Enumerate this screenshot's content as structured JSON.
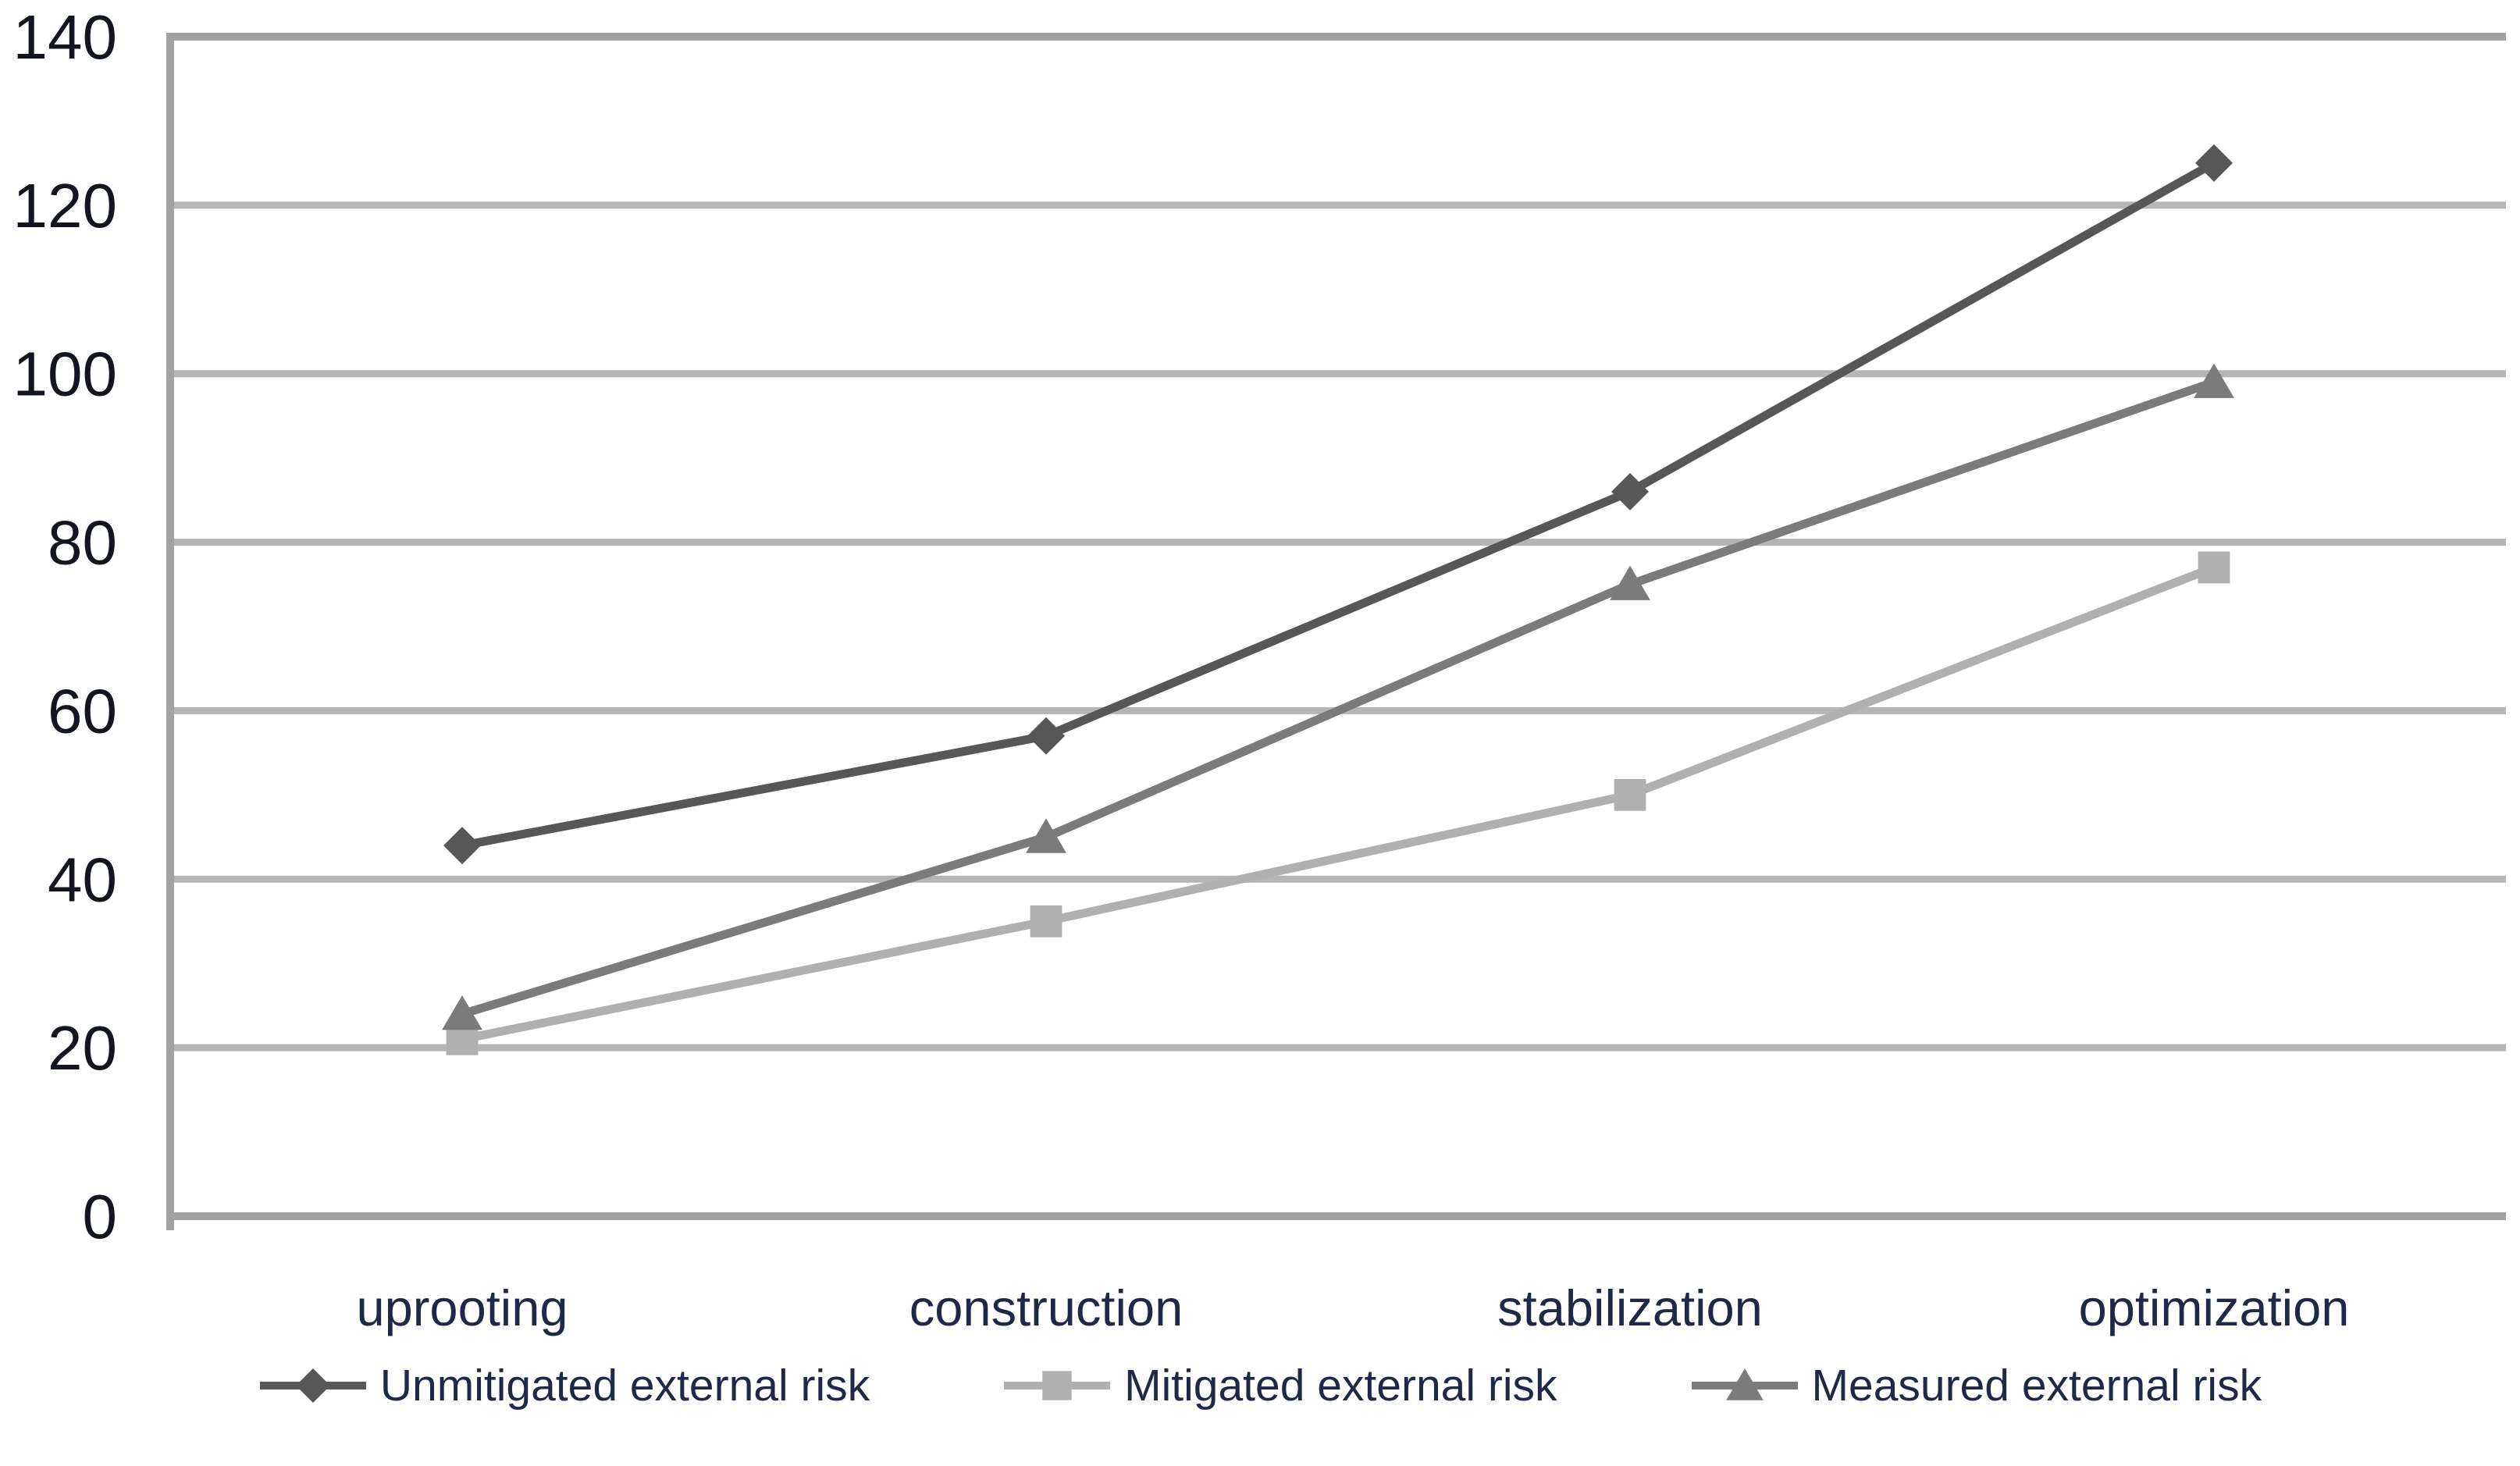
{
  "chart_data": {
    "type": "line",
    "title": "",
    "xlabel": "",
    "ylabel": "",
    "categories": [
      "uprooting",
      "construction",
      "stabilization",
      "optimization"
    ],
    "series": [
      {
        "name": "Unmitigated external risk",
        "marker": "diamond",
        "color": "#575757",
        "values": [
          44,
          57,
          86,
          125
        ]
      },
      {
        "name": "Mitigated external risk",
        "marker": "square",
        "color": "#b0b0b0",
        "values": [
          21,
          35,
          50,
          77
        ]
      },
      {
        "name": "Measured external risk",
        "marker": "triangle",
        "color": "#7b7b7b",
        "values": [
          24,
          45,
          75,
          99
        ]
      }
    ],
    "yticks": [
      0,
      20,
      40,
      60,
      80,
      100,
      120,
      140
    ],
    "ylim": [
      0,
      140
    ],
    "grid": true,
    "legend_position": "bottom"
  },
  "colors": {
    "background": "#ffffff",
    "gridline": "#b5b5b5",
    "axis": "#a2a2a2",
    "tick_text": "#14161f",
    "category_text": "#1f2847",
    "legend_text": "#1f2847"
  }
}
